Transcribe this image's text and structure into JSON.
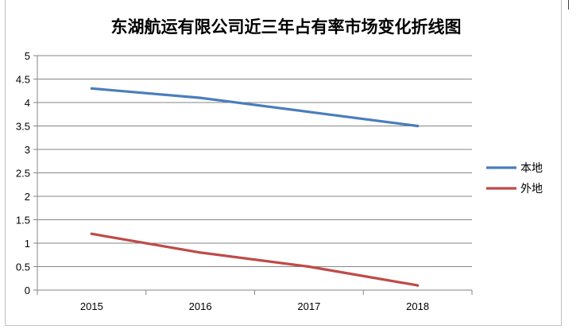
{
  "chart_data": {
    "type": "line",
    "title": "东湖航运有限公司近三年占有率市场变化折线图",
    "categories": [
      "2015",
      "2016",
      "2017",
      "2018"
    ],
    "series": [
      {
        "name": "本地",
        "color": "#4a7ebb",
        "values": [
          4.3,
          4.1,
          3.8,
          3.5
        ]
      },
      {
        "name": "外地",
        "color": "#be4b48",
        "values": [
          1.2,
          0.8,
          0.5,
          0.1
        ]
      }
    ],
    "ylim": [
      0,
      5
    ],
    "yticks": [
      "0",
      "0.5",
      "1",
      "1.5",
      "2",
      "2.5",
      "3",
      "3.5",
      "4",
      "4.5",
      "5"
    ],
    "grid": true,
    "legend": "right",
    "axis_color": "#868686"
  }
}
